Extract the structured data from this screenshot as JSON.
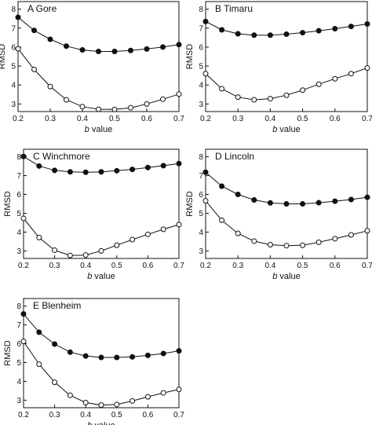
{
  "figure": {
    "background": "#ffffff",
    "ink": "#111111"
  },
  "chart_data": [
    {
      "type": "line",
      "title": "A Gore",
      "xlabel": "b value",
      "ylabel": "RMSD",
      "xlim": [
        0.2,
        0.7
      ],
      "ylim": [
        2.6,
        8.4
      ],
      "x_ticks": [
        0.2,
        0.3,
        0.4,
        0.5,
        0.6,
        0.7
      ],
      "y_ticks": [
        3,
        4,
        5,
        6,
        7,
        8
      ],
      "grid": false,
      "legend": "none",
      "x": [
        0.2,
        0.25,
        0.3,
        0.35,
        0.4,
        0.45,
        0.5,
        0.55,
        0.6,
        0.65,
        0.7
      ],
      "series": [
        {
          "marker": "filled-circle",
          "values": [
            7.57,
            6.88,
            6.41,
            6.05,
            5.85,
            5.77,
            5.77,
            5.82,
            5.9,
            6.0,
            6.13
          ]
        },
        {
          "marker": "open-circle",
          "values": [
            5.91,
            4.82,
            3.92,
            3.22,
            2.86,
            2.72,
            2.71,
            2.8,
            3.0,
            3.25,
            3.52
          ]
        }
      ]
    },
    {
      "type": "line",
      "title": "B Timaru",
      "xlabel": "b value",
      "ylabel": "RMSD",
      "xlim": [
        0.2,
        0.7
      ],
      "ylim": [
        2.6,
        8.4
      ],
      "x_ticks": [
        0.2,
        0.3,
        0.4,
        0.5,
        0.6,
        0.7
      ],
      "y_ticks": [
        3,
        4,
        5,
        6,
        7,
        8
      ],
      "grid": false,
      "legend": "none",
      "x": [
        0.2,
        0.25,
        0.3,
        0.35,
        0.4,
        0.45,
        0.5,
        0.55,
        0.6,
        0.65,
        0.7
      ],
      "series": [
        {
          "marker": "filled-circle",
          "values": [
            7.35,
            6.91,
            6.7,
            6.63,
            6.63,
            6.68,
            6.76,
            6.86,
            6.97,
            7.09,
            7.22
          ]
        },
        {
          "marker": "open-circle",
          "values": [
            4.6,
            3.8,
            3.36,
            3.22,
            3.28,
            3.46,
            3.73,
            4.04,
            4.33,
            4.6,
            4.9
          ]
        }
      ]
    },
    {
      "type": "line",
      "title": "C Winchmore",
      "xlabel": "b value",
      "ylabel": "RMSD",
      "xlim": [
        0.2,
        0.7
      ],
      "ylim": [
        2.6,
        8.4
      ],
      "x_ticks": [
        0.2,
        0.3,
        0.4,
        0.5,
        0.6,
        0.7
      ],
      "y_ticks": [
        3,
        4,
        5,
        6,
        7,
        8
      ],
      "grid": false,
      "legend": "none",
      "x": [
        0.2,
        0.25,
        0.3,
        0.35,
        0.4,
        0.45,
        0.5,
        0.55,
        0.6,
        0.65,
        0.7
      ],
      "series": [
        {
          "marker": "filled-circle",
          "values": [
            8.02,
            7.51,
            7.28,
            7.2,
            7.18,
            7.2,
            7.26,
            7.33,
            7.43,
            7.53,
            7.64
          ]
        },
        {
          "marker": "open-circle",
          "values": [
            4.73,
            3.71,
            3.04,
            2.76,
            2.78,
            3.0,
            3.3,
            3.6,
            3.88,
            4.15,
            4.4
          ]
        }
      ]
    },
    {
      "type": "line",
      "title": "D Lincoln",
      "xlabel": "b value",
      "ylabel": "RMSD",
      "xlim": [
        0.2,
        0.7
      ],
      "ylim": [
        2.6,
        8.4
      ],
      "x_ticks": [
        0.2,
        0.3,
        0.4,
        0.5,
        0.6,
        0.7
      ],
      "y_ticks": [
        3,
        4,
        5,
        6,
        7,
        8
      ],
      "grid": false,
      "legend": "none",
      "x": [
        0.2,
        0.25,
        0.3,
        0.35,
        0.4,
        0.45,
        0.5,
        0.55,
        0.6,
        0.65,
        0.7
      ],
      "series": [
        {
          "marker": "filled-circle",
          "values": [
            7.18,
            6.44,
            6.0,
            5.71,
            5.55,
            5.5,
            5.5,
            5.56,
            5.64,
            5.73,
            5.85
          ]
        },
        {
          "marker": "open-circle",
          "values": [
            5.66,
            4.63,
            3.93,
            3.52,
            3.33,
            3.28,
            3.3,
            3.46,
            3.65,
            3.85,
            4.07
          ]
        }
      ]
    },
    {
      "type": "line",
      "title": "E Blenheim",
      "xlabel": "b value",
      "ylabel": "RMSD",
      "xlim": [
        0.2,
        0.7
      ],
      "ylim": [
        2.6,
        8.4
      ],
      "x_ticks": [
        0.2,
        0.3,
        0.4,
        0.5,
        0.6,
        0.7
      ],
      "y_ticks": [
        3,
        4,
        5,
        6,
        7,
        8
      ],
      "grid": false,
      "legend": "none",
      "x": [
        0.2,
        0.25,
        0.3,
        0.35,
        0.4,
        0.45,
        0.5,
        0.55,
        0.6,
        0.65,
        0.7
      ],
      "series": [
        {
          "marker": "filled-circle",
          "values": [
            7.58,
            6.61,
            5.98,
            5.55,
            5.35,
            5.27,
            5.27,
            5.3,
            5.38,
            5.48,
            5.62
          ]
        },
        {
          "marker": "open-circle",
          "values": [
            6.12,
            4.91,
            3.95,
            3.26,
            2.87,
            2.74,
            2.77,
            2.96,
            3.18,
            3.39,
            3.57
          ]
        }
      ]
    }
  ]
}
